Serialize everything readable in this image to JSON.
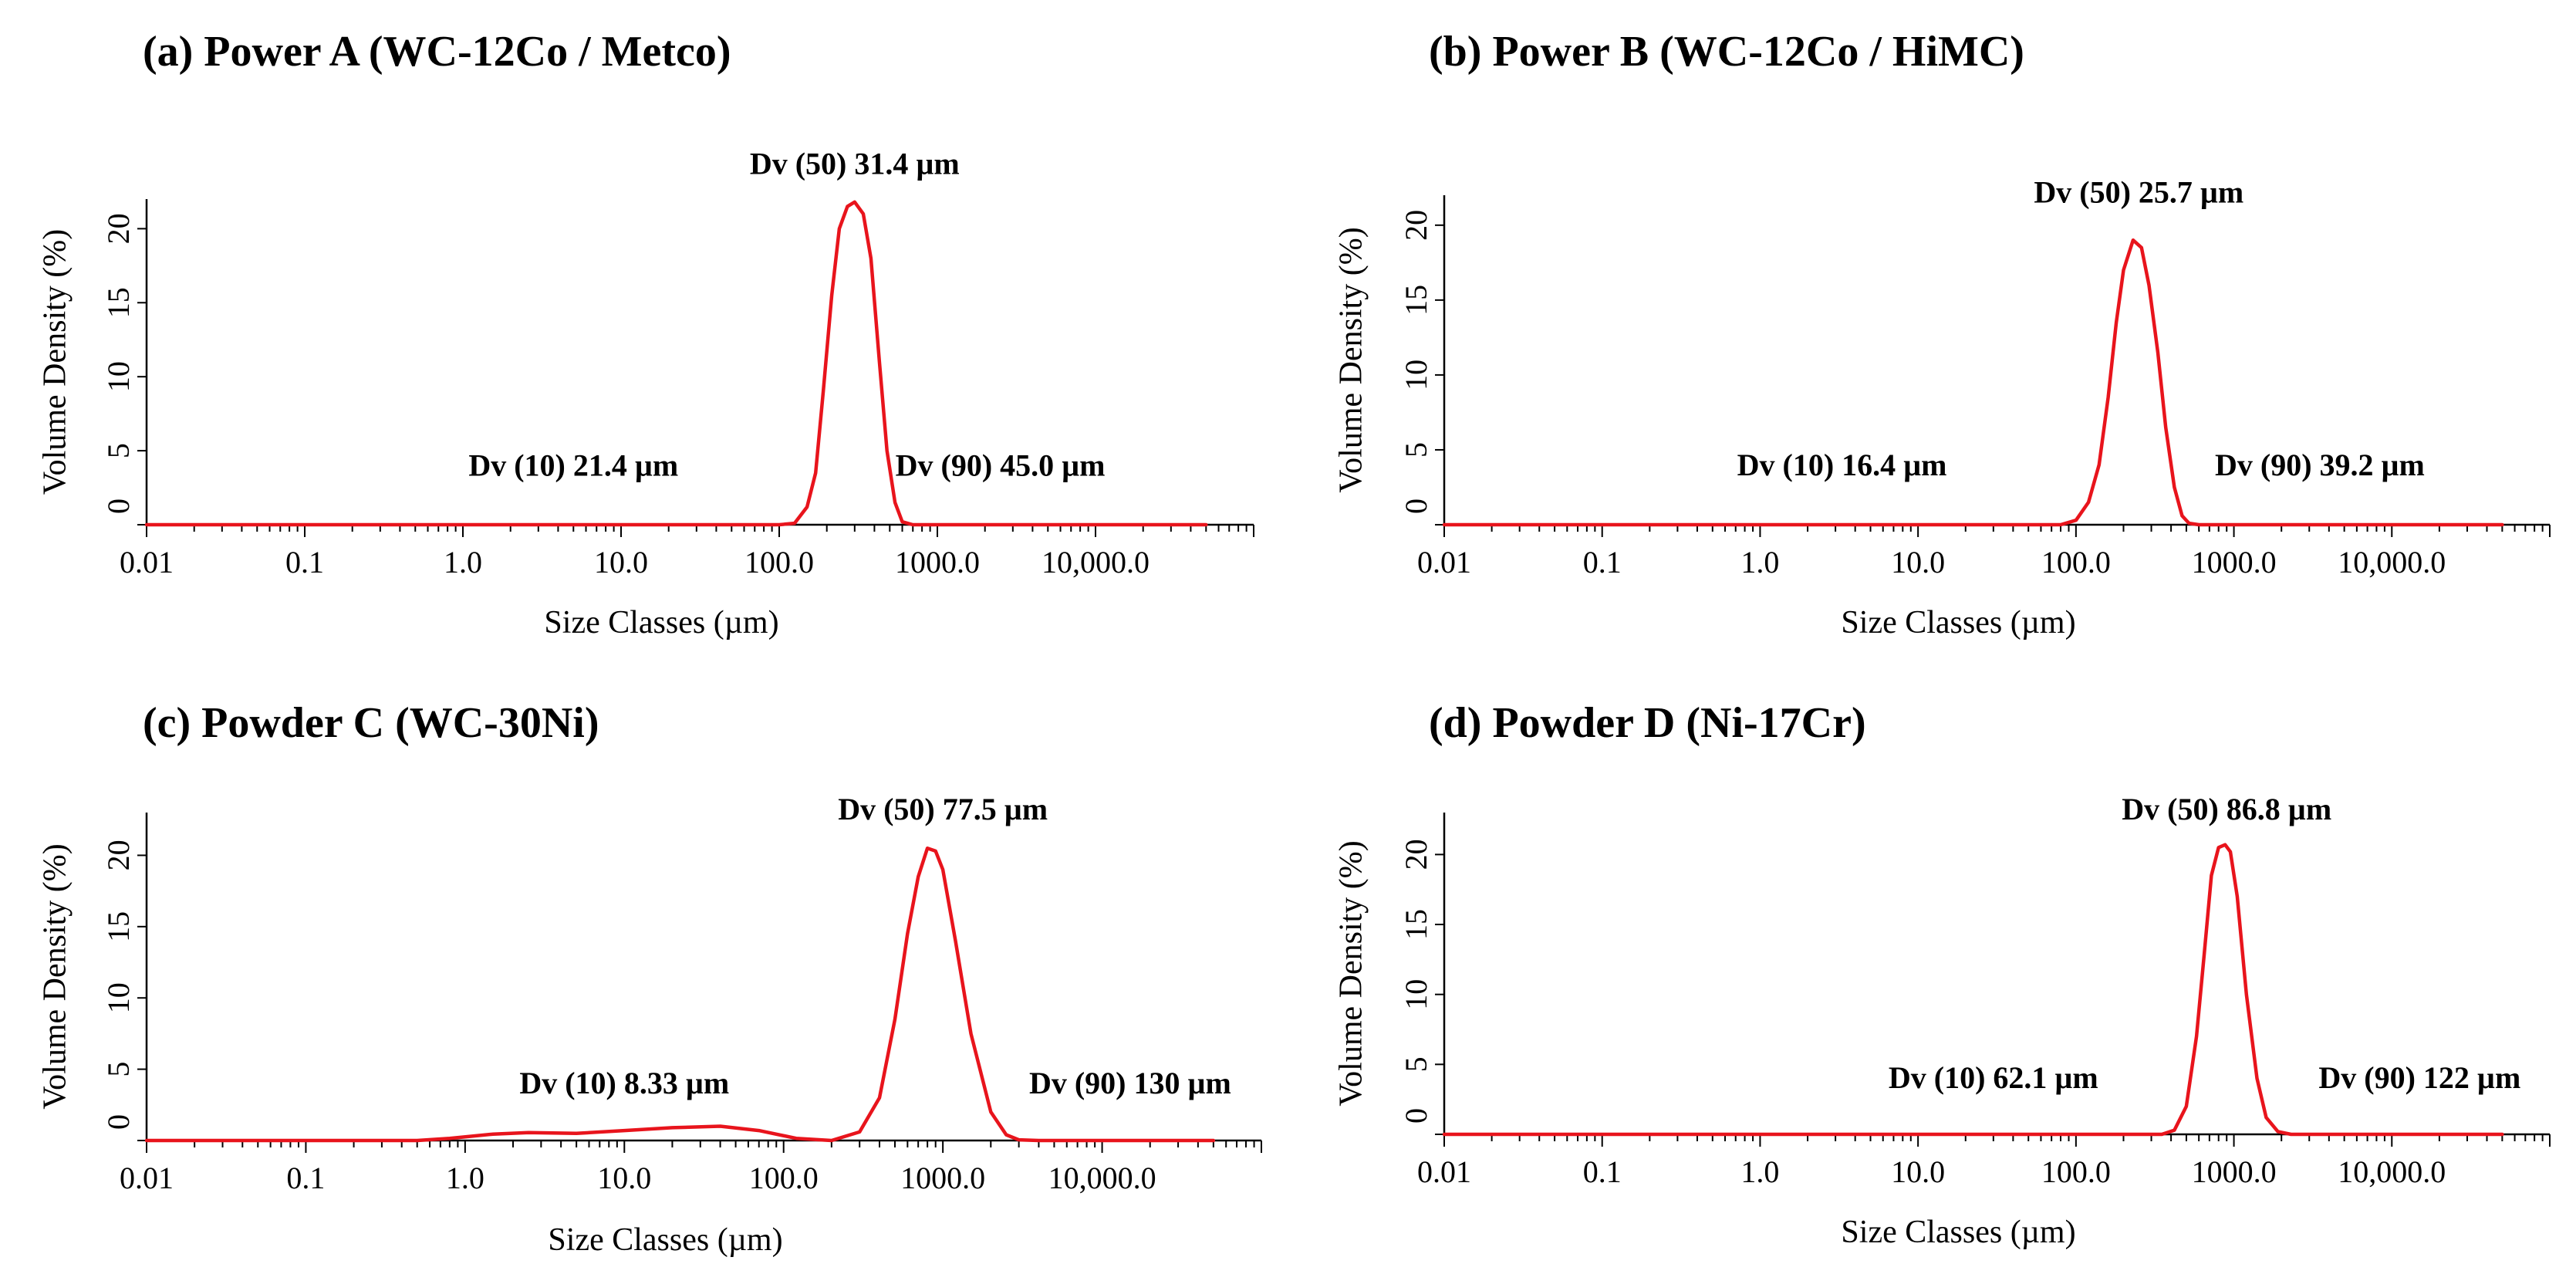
{
  "chart_data": [
    {
      "type": "line",
      "title": "(a) Power A (WC-12Co / Metco)",
      "xlabel": "Size Classes (µm)",
      "ylabel": "Volume Density (%)",
      "xscale": "log",
      "xlim": [
        0.01,
        100000
      ],
      "ylim": [
        0,
        22
      ],
      "x_ticks": [
        0.01,
        0.1,
        1,
        10,
        100,
        1000,
        10000
      ],
      "x_tick_labels": [
        "0.01",
        "0.1",
        "1.0",
        "10.0",
        "100.0",
        "1000.0",
        "10,000.0"
      ],
      "y_ticks": [
        0,
        5,
        10,
        15,
        20
      ],
      "y_tick_labels": [
        "0",
        "5",
        "10",
        "15",
        "20"
      ],
      "annotations": [
        {
          "label": "Dv (10) 21.4 µm",
          "x": 5,
          "y": 3.3
        },
        {
          "label": "Dv (50) 31.4 µm",
          "x": 300,
          "y": 23.7
        },
        {
          "label": "Dv (90) 45.0 µm",
          "x": 2500,
          "y": 3.3
        }
      ],
      "series": [
        {
          "name": "Volume Density",
          "color": "#e8141c",
          "x": [
            0.01,
            100,
            125,
            150,
            170,
            190,
            215,
            240,
            270,
            300,
            340,
            380,
            430,
            480,
            540,
            600,
            700,
            50000
          ],
          "y": [
            0,
            0,
            0.1,
            1.2,
            3.5,
            9.0,
            15.5,
            20.0,
            21.5,
            21.8,
            21.0,
            18.0,
            11.0,
            5.0,
            1.5,
            0.2,
            0,
            0
          ]
        }
      ]
    },
    {
      "type": "line",
      "title": "(b) Power B (WC-12Co / HiMC)",
      "xlabel": "Size Classes (µm)",
      "ylabel": "Volume Density (%)",
      "xscale": "log",
      "xlim": [
        0.01,
        100000
      ],
      "ylim": [
        0,
        22
      ],
      "x_ticks": [
        0.01,
        0.1,
        1,
        10,
        100,
        1000,
        10000
      ],
      "x_tick_labels": [
        "0.01",
        "0.1",
        "1.0",
        "10.0",
        "100.0",
        "1000.0",
        "10,000.0"
      ],
      "y_ticks": [
        0,
        5,
        10,
        15,
        20
      ],
      "y_tick_labels": [
        "0",
        "5",
        "10",
        "15",
        "20"
      ],
      "annotations": [
        {
          "label": "Dv (10) 16.4 µm",
          "x": 3.3,
          "y": 3.3
        },
        {
          "label": "Dv (50) 25.7 µm",
          "x": 250,
          "y": 21.5
        },
        {
          "label": "Dv (90) 39.2 µm",
          "x": 3500,
          "y": 3.3
        }
      ],
      "series": [
        {
          "name": "Volume Density",
          "color": "#e8141c",
          "x": [
            0.01,
            80,
            100,
            120,
            140,
            160,
            180,
            200,
            230,
            260,
            290,
            330,
            370,
            420,
            470,
            520,
            600,
            50000
          ],
          "y": [
            0,
            0,
            0.3,
            1.5,
            4.0,
            8.5,
            13.5,
            17.0,
            19.0,
            18.5,
            16.0,
            11.5,
            6.5,
            2.5,
            0.6,
            0.1,
            0,
            0
          ]
        }
      ]
    },
    {
      "type": "line",
      "title": "(c) Powder C (WC-30Ni)",
      "xlabel": "Size Classes (µm)",
      "ylabel": "Volume Density (%)",
      "xscale": "log",
      "xlim": [
        0.01,
        100000
      ],
      "ylim": [
        0,
        23
      ],
      "x_ticks": [
        0.01,
        0.1,
        1,
        10,
        100,
        1000,
        10000
      ],
      "x_tick_labels": [
        "0.01",
        "0.1",
        "1.0",
        "10.0",
        "100.0",
        "1000.0",
        "10,000.0"
      ],
      "y_ticks": [
        0,
        5,
        10,
        15,
        20
      ],
      "y_tick_labels": [
        "0",
        "5",
        "10",
        "15",
        "20"
      ],
      "annotations": [
        {
          "label": "Dv (10) 8.33 µm",
          "x": 10,
          "y": 3.3
        },
        {
          "label": "Dv (50) 77.5 µm",
          "x": 1000,
          "y": 22.5
        },
        {
          "label": "Dv (90) 130 µm",
          "x": 15000,
          "y": 3.3
        }
      ],
      "series": [
        {
          "name": "Volume Density",
          "color": "#e8141c",
          "x": [
            0.01,
            0.5,
            0.8,
            1.5,
            2.5,
            5,
            10,
            20,
            40,
            70,
            120,
            200,
            300,
            400,
            500,
            600,
            700,
            800,
            900,
            1000,
            1200,
            1500,
            2000,
            2500,
            3000,
            4000,
            50000
          ],
          "y": [
            0,
            0,
            0.15,
            0.45,
            0.55,
            0.5,
            0.7,
            0.9,
            1.0,
            0.7,
            0.15,
            0,
            0.6,
            3.0,
            8.5,
            14.5,
            18.5,
            20.5,
            20.3,
            19.0,
            14.0,
            7.5,
            2.0,
            0.4,
            0.05,
            0,
            0
          ]
        }
      ]
    },
    {
      "type": "line",
      "title": "(d) Powder D (Ni-17Cr)",
      "xlabel": "Size Classes (µm)",
      "ylabel": "Volume Density (%)",
      "xscale": "log",
      "xlim": [
        0.01,
        100000
      ],
      "ylim": [
        0,
        23
      ],
      "x_ticks": [
        0.01,
        0.1,
        1,
        10,
        100,
        1000,
        10000
      ],
      "x_tick_labels": [
        "0.01",
        "0.1",
        "1.0",
        "10.0",
        "100.0",
        "1000.0",
        "10,000.0"
      ],
      "y_ticks": [
        0,
        5,
        10,
        15,
        20
      ],
      "y_tick_labels": [
        "0",
        "5",
        "10",
        "15",
        "20"
      ],
      "annotations": [
        {
          "label": "Dv (10) 62.1 µm",
          "x": 30,
          "y": 3.3
        },
        {
          "label": "Dv (50) 86.8 µm",
          "x": 900,
          "y": 22.5
        },
        {
          "label": "Dv (90) 122 µm",
          "x": 15000,
          "y": 3.3
        }
      ],
      "series": [
        {
          "name": "Volume Density",
          "color": "#e8141c",
          "x": [
            0.01,
            350,
            420,
            500,
            580,
            650,
            720,
            800,
            880,
            950,
            1050,
            1200,
            1400,
            1600,
            1900,
            2300,
            50000
          ],
          "y": [
            0,
            0,
            0.3,
            2.0,
            7.0,
            13.0,
            18.5,
            20.5,
            20.7,
            20.2,
            17.0,
            10.0,
            4.0,
            1.2,
            0.2,
            0,
            0
          ]
        }
      ]
    }
  ]
}
